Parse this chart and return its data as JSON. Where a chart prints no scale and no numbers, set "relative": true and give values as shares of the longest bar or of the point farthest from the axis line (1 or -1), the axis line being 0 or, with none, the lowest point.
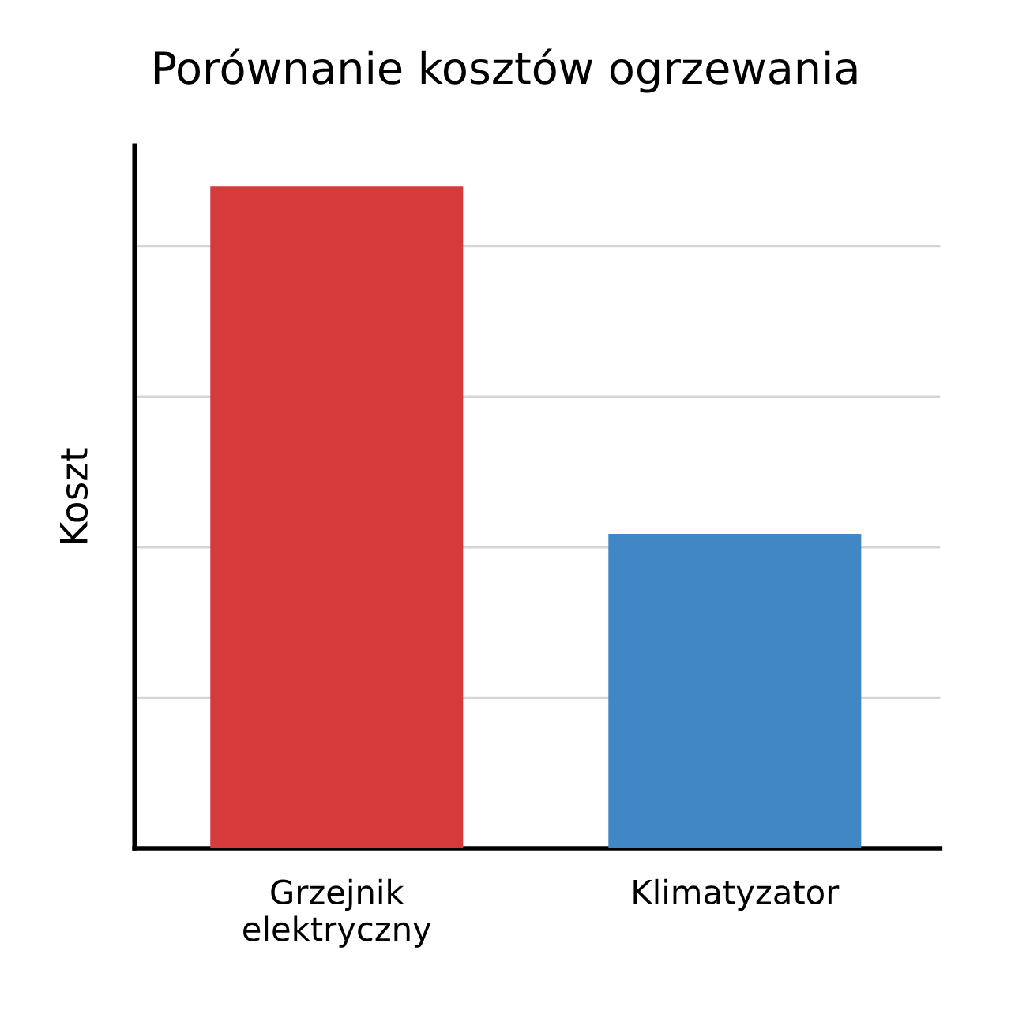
{
  "chart_data": {
    "type": "bar",
    "title": "Porównanie kosztów ogrzewania",
    "ylabel": "Koszt",
    "categories": [
      "Grzejnik\nelektryczny",
      "Klimatyzator"
    ],
    "values": [
      1,
      0.475
    ],
    "colors": [
      "#d63a3a",
      "#3f88c5"
    ],
    "relative": true,
    "grid": "y"
  }
}
